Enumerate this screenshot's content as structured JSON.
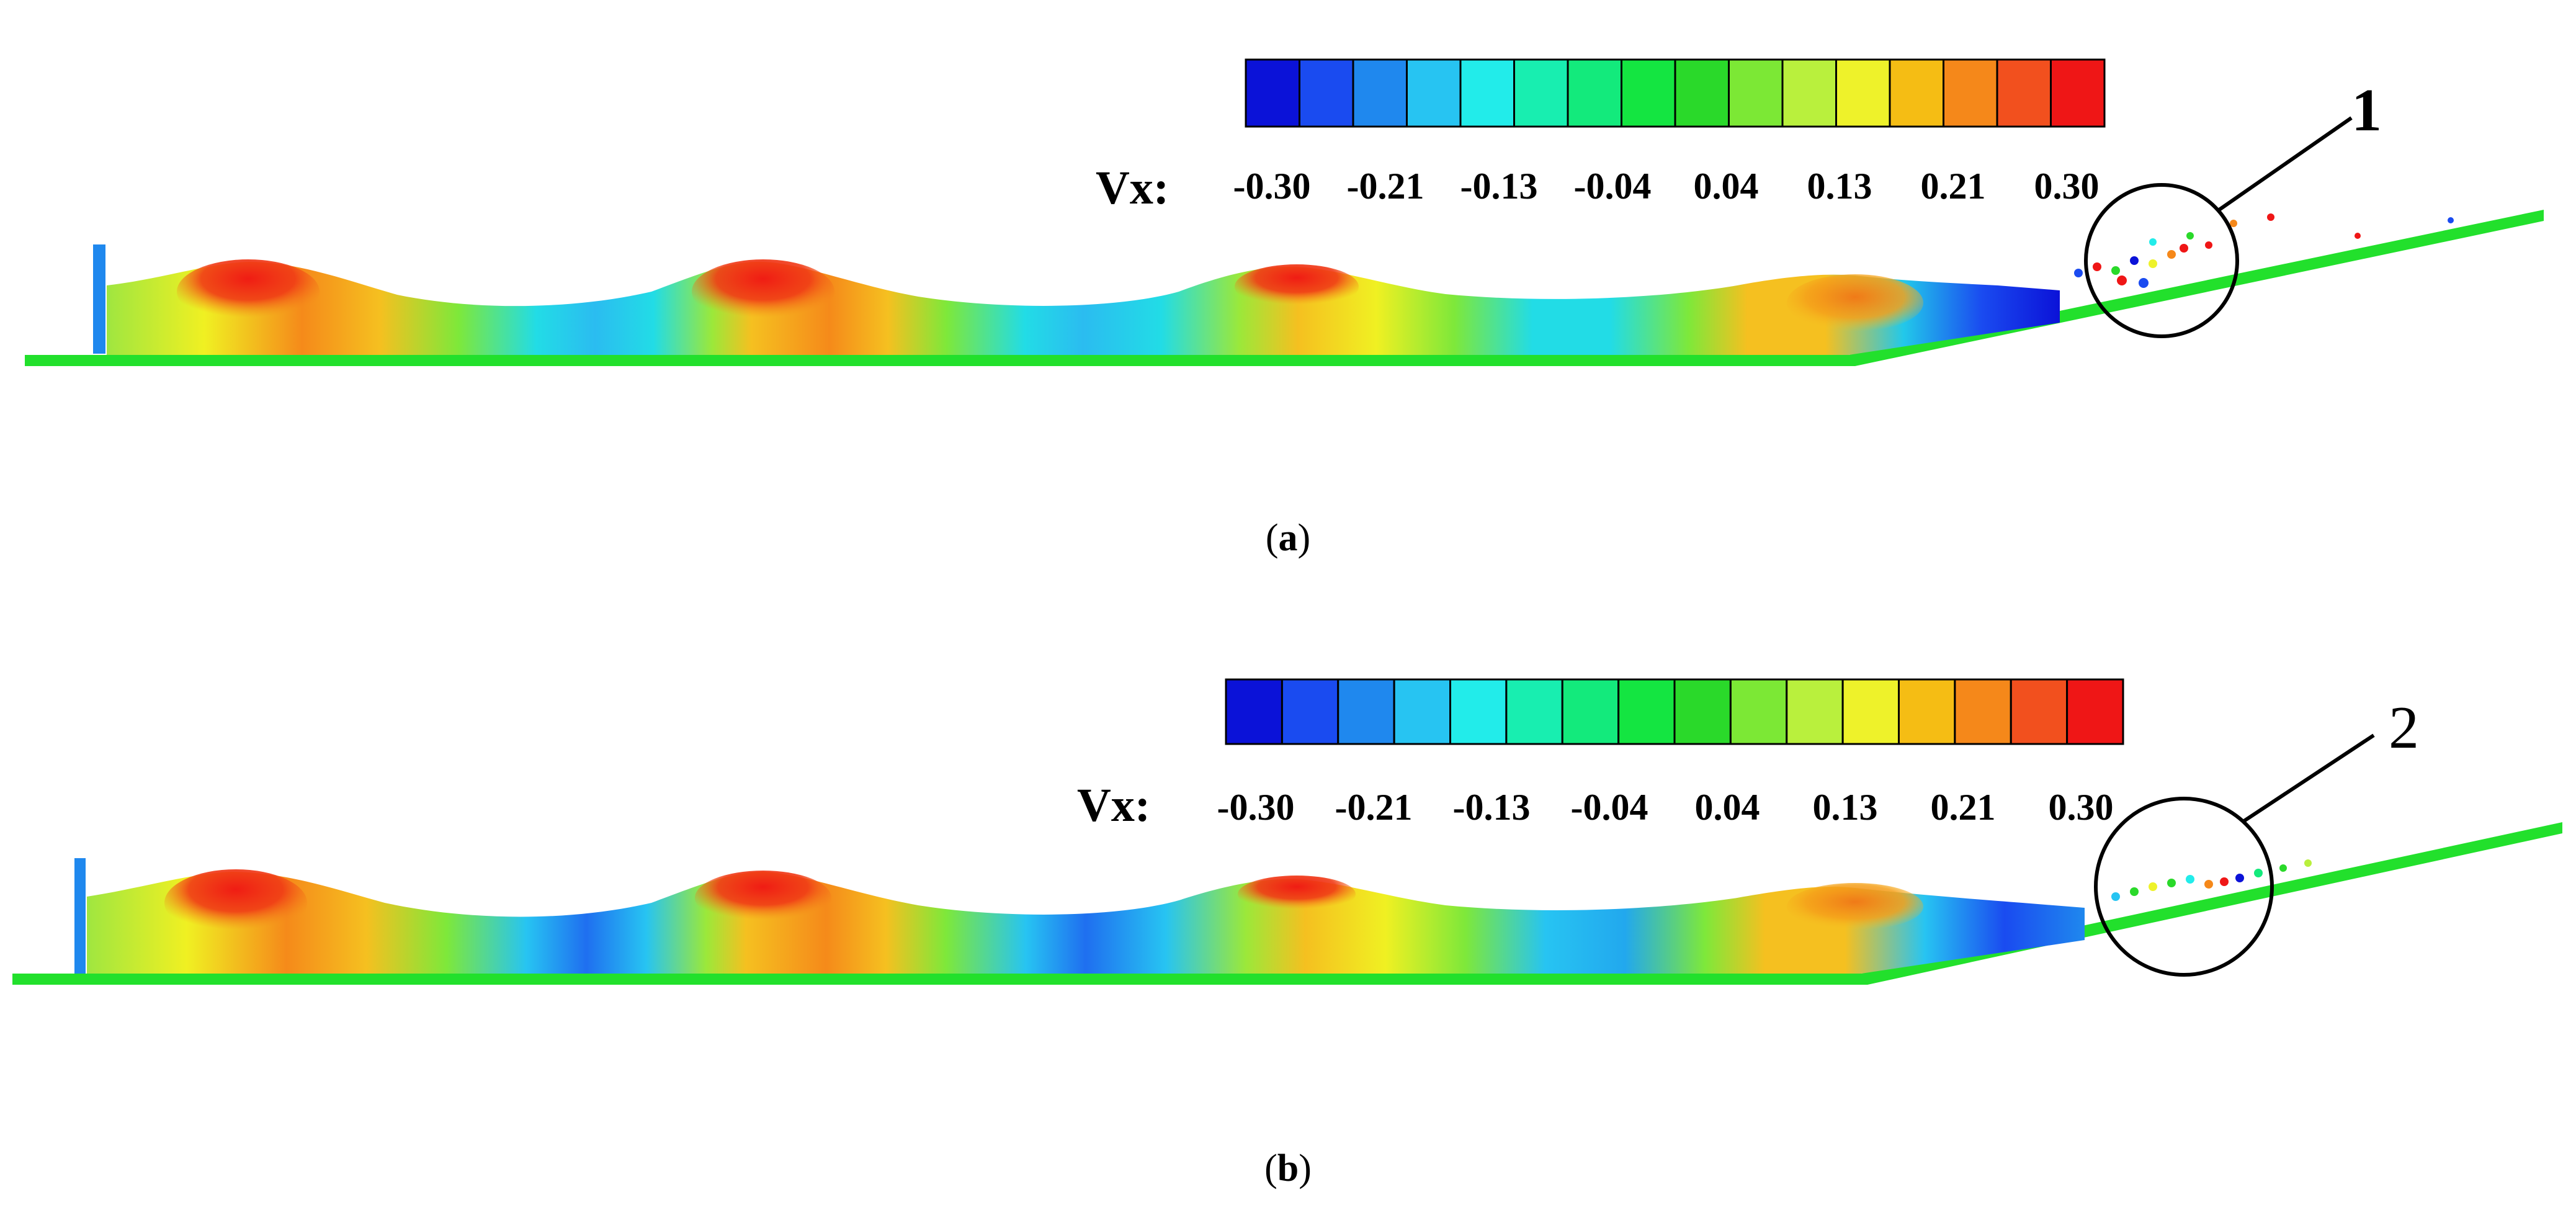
{
  "colormap": {
    "colors": [
      "#0b12d8",
      "#1a4bf0",
      "#1f88ee",
      "#27c4f2",
      "#22ecea",
      "#18eeb0",
      "#13ea7c",
      "#14e541",
      "#2ad92a",
      "#7ce835",
      "#b9f03d",
      "#eef22a",
      "#f5bd14",
      "#f5881a",
      "#f2501e",
      "#ef1616"
    ],
    "variable_label": "Vx:",
    "tick_labels": [
      "-0.30",
      "-0.21",
      "-0.13",
      "-0.04",
      "0.04",
      "0.13",
      "0.21",
      "0.30"
    ]
  },
  "panels": [
    {
      "id": "a",
      "caption_letter": "a",
      "callout_label": "1",
      "wave_colors": [
        "#f01c14",
        "#f01c14",
        "#ef4a18",
        "#f58a1a"
      ],
      "trough_colors": [
        "#2bbcf0",
        "#2bbcf0",
        "#2bbcf0",
        "#22b0ee"
      ]
    },
    {
      "id": "b",
      "caption_letter": "b",
      "callout_label": "2",
      "wave_colors": [
        "#f01c14",
        "#f01c14",
        "#ef3a16",
        "#f58a1a"
      ],
      "trough_colors": [
        "#1f6ff0",
        "#1f6ff0",
        "#1e80ee",
        "#22a8ee"
      ]
    }
  ]
}
